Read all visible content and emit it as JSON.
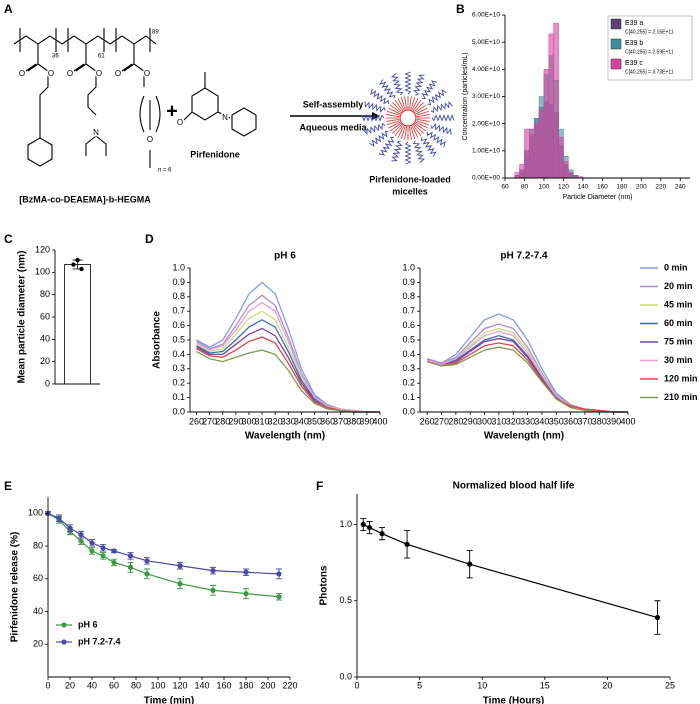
{
  "panel_labels": [
    "A",
    "B",
    "C",
    "D",
    "E",
    "F"
  ],
  "scheme": {
    "polymer_name": "[BzMA-co-DEAEMA]-b-HEGMA",
    "subscripts": [
      "36",
      "61",
      "89"
    ],
    "peg_subscript": "n = 6",
    "atoms": [
      "O",
      "O",
      "O",
      "O",
      "N",
      "O",
      "O",
      "O",
      "N",
      "O"
    ],
    "plus": "+",
    "drug_name": "Pirfenidone",
    "arrow_top": "Self-assembly",
    "arrow_bottom": "Aqueous media",
    "product_label": [
      "Pirfenidone-loaded",
      "micelles"
    ]
  },
  "chart_data": [
    {
      "type": "histogram",
      "xlabel": "Particle Diameter (nm)",
      "ylabel": "Concentration (particles/mL)",
      "bins": [
        65,
        70,
        75,
        80,
        85,
        90,
        95,
        100,
        105,
        110,
        115,
        120,
        125,
        130,
        135,
        140,
        145
      ],
      "series": [
        {
          "name": "E39 a",
          "concentration": "C[40,255] = 2.16E+11",
          "color": "#5b3f7c",
          "values": [
            0,
            1000000000.0,
            3000000000.0,
            10000000000.0,
            18000000000.0,
            22000000000.0,
            26000000000.0,
            28000000000.0,
            27000000000.0,
            24000000000.0,
            12000000000.0,
            5000000000.0,
            2000000000.0,
            1000000000.0,
            0,
            0
          ]
        },
        {
          "name": "E39 b",
          "concentration": "C[40,255] = 2.59E+11",
          "color": "#3f8d9c",
          "values": [
            0,
            0,
            2000000000.0,
            8000000000.0,
            15000000000.0,
            22000000000.0,
            30000000000.0,
            38000000000.0,
            45000000000.0,
            36000000000.0,
            18000000000.0,
            8000000000.0,
            3000000000.0,
            1000000000.0,
            0,
            0
          ]
        },
        {
          "name": "E39 c",
          "concentration": "C[40,255] = 3.73E+11",
          "color": "#d4439c",
          "values": [
            0,
            2000000000.0,
            5000000000.0,
            18000000000.0,
            16000000000.0,
            20000000000.0,
            25000000000.0,
            40000000000.0,
            53000000000.0,
            57000000000.0,
            15000000000.0,
            6000000000.0,
            2000000000.0,
            0,
            500000000.0,
            0
          ]
        }
      ],
      "xlim": [
        60,
        250
      ],
      "xticks": [
        60,
        80,
        100,
        120,
        140,
        160,
        180,
        200,
        220,
        240
      ],
      "ylim": [
        0,
        60000000000.0
      ],
      "yticks": [
        {
          "value": 0,
          "label": "0.00E+00"
        },
        {
          "value": 10000000000.0,
          "label": "1.00E+10"
        },
        {
          "value": 20000000000.0,
          "label": "2.00E+10"
        },
        {
          "value": 30000000000.0,
          "label": "3.00E+10"
        },
        {
          "value": 40000000000.0,
          "label": "4.00E+10"
        },
        {
          "value": 50000000000.0,
          "label": "5.00E+10"
        },
        {
          "value": 60000000000.0,
          "label": "6.00E+10"
        }
      ],
      "legend": "upper right"
    },
    {
      "type": "bar",
      "ylabel": "Mean particle diameter (nm)",
      "categories": [
        null
      ],
      "values": [
        107
      ],
      "errors": [
        4
      ],
      "points": [
        111,
        107,
        103
      ],
      "color": "#ffffff",
      "ylim": [
        0,
        120
      ],
      "yticks": [
        0,
        20,
        40,
        60,
        80,
        100,
        120
      ]
    },
    {
      "type": "line",
      "title": "pH 6",
      "xlabel": "Wavelength (nm)",
      "ylabel": "Absorbance",
      "x": [
        260,
        270,
        280,
        290,
        300,
        310,
        320,
        330,
        340,
        350,
        360,
        370,
        380,
        390,
        400
      ],
      "series": [
        {
          "color": "#7d9fe6",
          "values": [
            0.5,
            0.45,
            0.5,
            0.65,
            0.82,
            0.9,
            0.82,
            0.58,
            0.3,
            0.12,
            0.05,
            0.02,
            0.01,
            0.0,
            0.0
          ]
        },
        {
          "color": "#b38ad6",
          "values": [
            0.49,
            0.44,
            0.47,
            0.6,
            0.74,
            0.81,
            0.74,
            0.52,
            0.27,
            0.11,
            0.04,
            0.02,
            0.01,
            0.0,
            0.0
          ]
        },
        {
          "color": "#c8e07a",
          "values": [
            0.47,
            0.42,
            0.44,
            0.54,
            0.65,
            0.7,
            0.64,
            0.45,
            0.24,
            0.1,
            0.04,
            0.02,
            0.01,
            0.0,
            0.0
          ]
        },
        {
          "color": "#3b6fb5",
          "values": [
            0.46,
            0.41,
            0.42,
            0.5,
            0.59,
            0.64,
            0.59,
            0.42,
            0.22,
            0.09,
            0.04,
            0.01,
            0.01,
            0.0,
            0.0
          ]
        },
        {
          "color": "#7d3fa0",
          "values": [
            0.45,
            0.4,
            0.4,
            0.47,
            0.54,
            0.58,
            0.53,
            0.38,
            0.2,
            0.08,
            0.03,
            0.01,
            0.0,
            0.0,
            0.0
          ]
        },
        {
          "color": "#ec9fd2",
          "values": [
            0.48,
            0.43,
            0.46,
            0.57,
            0.7,
            0.76,
            0.7,
            0.49,
            0.26,
            0.1,
            0.04,
            0.02,
            0.01,
            0.0,
            0.0
          ]
        },
        {
          "color": "#e0434b",
          "values": [
            0.44,
            0.39,
            0.38,
            0.43,
            0.49,
            0.52,
            0.48,
            0.34,
            0.18,
            0.07,
            0.03,
            0.01,
            0.0,
            0.0,
            0.0
          ]
        },
        {
          "color": "#7d9a4f",
          "values": [
            0.42,
            0.37,
            0.35,
            0.38,
            0.41,
            0.43,
            0.4,
            0.29,
            0.15,
            0.06,
            0.02,
            0.01,
            0.0,
            0.0,
            0.0
          ]
        }
      ],
      "xlim": [
        255,
        400
      ],
      "xticks": [
        260,
        270,
        280,
        290,
        300,
        310,
        320,
        330,
        340,
        350,
        360,
        370,
        380,
        390,
        400
      ],
      "ylim": [
        0,
        1.0
      ],
      "yticks": [
        {
          "value": 0,
          "label": "0.0"
        },
        {
          "value": 0.1,
          "label": "0.1"
        },
        {
          "value": 0.2,
          "label": "0.2"
        },
        {
          "value": 0.3,
          "label": "0.3"
        },
        {
          "value": 0.4,
          "label": "0.4"
        },
        {
          "value": 0.5,
          "label": "0.5"
        },
        {
          "value": 0.6,
          "label": "0.6"
        },
        {
          "value": 0.7,
          "label": "0.7"
        },
        {
          "value": 0.8,
          "label": "0.8"
        },
        {
          "value": 0.9,
          "label": "0.9"
        },
        {
          "value": 1.0,
          "label": "1.0"
        }
      ]
    },
    {
      "type": "line",
      "title": "pH 7.2-7.4",
      "xlabel": "Wavelength (nm)",
      "x": [
        260,
        270,
        280,
        290,
        300,
        310,
        320,
        330,
        340,
        350,
        360,
        370,
        380,
        390,
        400
      ],
      "series": [
        {
          "name": "0 min",
          "color": "#7d9fe6",
          "values": [
            0.37,
            0.34,
            0.4,
            0.52,
            0.64,
            0.68,
            0.64,
            0.5,
            0.3,
            0.13,
            0.05,
            0.02,
            0.01,
            0.0,
            0.0
          ]
        },
        {
          "name": "20 min",
          "color": "#b38ad6",
          "values": [
            0.37,
            0.34,
            0.38,
            0.48,
            0.58,
            0.61,
            0.58,
            0.45,
            0.27,
            0.12,
            0.05,
            0.02,
            0.01,
            0.0,
            0.0
          ]
        },
        {
          "name": "45 min",
          "color": "#c8e07a",
          "values": [
            0.36,
            0.33,
            0.37,
            0.46,
            0.55,
            0.58,
            0.55,
            0.43,
            0.26,
            0.11,
            0.04,
            0.02,
            0.01,
            0.0,
            0.0
          ]
        },
        {
          "name": "60 min",
          "color": "#3b6fb5",
          "values": [
            0.36,
            0.33,
            0.36,
            0.43,
            0.5,
            0.53,
            0.5,
            0.39,
            0.24,
            0.1,
            0.04,
            0.02,
            0.01,
            0.0,
            0.0
          ]
        },
        {
          "name": "75 min",
          "color": "#7d3fa0",
          "values": [
            0.36,
            0.33,
            0.35,
            0.42,
            0.49,
            0.51,
            0.49,
            0.38,
            0.23,
            0.1,
            0.04,
            0.02,
            0.01,
            0.0,
            0.0
          ]
        },
        {
          "name": "30 min",
          "color": "#ec9fd2",
          "values": [
            0.36,
            0.33,
            0.37,
            0.45,
            0.53,
            0.56,
            0.53,
            0.41,
            0.25,
            0.11,
            0.04,
            0.02,
            0.01,
            0.0,
            0.0
          ]
        },
        {
          "name": "120 min",
          "color": "#e0434b",
          "values": [
            0.35,
            0.32,
            0.34,
            0.4,
            0.46,
            0.48,
            0.46,
            0.36,
            0.22,
            0.09,
            0.04,
            0.02,
            0.01,
            0.0,
            0.0
          ]
        },
        {
          "name": "210 min",
          "color": "#7d9a4f",
          "values": [
            0.35,
            0.32,
            0.33,
            0.38,
            0.43,
            0.45,
            0.43,
            0.34,
            0.21,
            0.09,
            0.03,
            0.01,
            0.0,
            0.0,
            0.0
          ]
        }
      ],
      "xlim": [
        255,
        400
      ],
      "xticks": [
        260,
        270,
        280,
        290,
        300,
        310,
        320,
        330,
        340,
        350,
        360,
        370,
        380,
        390,
        400
      ],
      "ylim": [
        0,
        1.0
      ],
      "yticks": [
        {
          "value": 0,
          "label": "0.0"
        },
        {
          "value": 0.1,
          "label": "0.1"
        },
        {
          "value": 0.2,
          "label": "0.2"
        },
        {
          "value": 0.3,
          "label": "0.3"
        },
        {
          "value": 0.4,
          "label": "0.4"
        },
        {
          "value": 0.5,
          "label": "0.5"
        },
        {
          "value": 0.6,
          "label": "0.6"
        },
        {
          "value": 0.7,
          "label": "0.7"
        },
        {
          "value": 0.8,
          "label": "0.8"
        },
        {
          "value": 0.9,
          "label": "0.9"
        },
        {
          "value": 1.0,
          "label": "1.0"
        }
      ],
      "legend": "right"
    },
    {
      "type": "line",
      "xlabel": "Time (min)",
      "ylabel": "Pirfenidone release (%)",
      "markers": true,
      "x": [
        0,
        10,
        20,
        30,
        40,
        50,
        60,
        75,
        90,
        120,
        150,
        180,
        210
      ],
      "series": [
        {
          "name": "pH 6",
          "color": "#3a9a3f",
          "values": [
            100,
            96,
            89,
            83,
            77,
            74,
            70,
            67,
            63,
            57,
            53,
            51,
            49
          ],
          "errors": [
            1,
            2,
            2,
            2,
            2,
            2,
            2,
            3,
            3,
            3,
            3,
            3,
            2
          ]
        },
        {
          "name": "pH 7.2-7.4",
          "color": "#4a4aa8",
          "values": [
            100,
            97,
            91,
            87,
            82,
            79,
            77,
            74,
            71,
            68,
            65,
            64,
            63
          ],
          "errors": [
            1,
            2,
            2,
            2,
            2,
            2,
            1,
            2,
            2,
            2,
            2,
            2,
            3
          ]
        }
      ],
      "xlim": [
        0,
        220
      ],
      "xticks": [
        0,
        20,
        40,
        60,
        80,
        100,
        120,
        140,
        160,
        180,
        200,
        220
      ],
      "ylim": [
        0,
        110
      ],
      "yticks": [
        20,
        40,
        60,
        80,
        100
      ],
      "legend": "lower left"
    },
    {
      "type": "line",
      "title": "Normalized blood half life",
      "xlabel": "Time (Hours)",
      "ylabel": "Photons",
      "markers": true,
      "x": [
        0.5,
        1,
        2,
        4,
        9,
        24
      ],
      "series": [
        {
          "color": "#000000",
          "values": [
            1.0,
            0.98,
            0.94,
            0.87,
            0.74,
            0.39
          ],
          "errors": [
            0.04,
            0.04,
            0.04,
            0.09,
            0.09,
            0.11
          ]
        }
      ],
      "xlim": [
        0,
        25
      ],
      "xticks": [
        0,
        5,
        10,
        15,
        20,
        25
      ],
      "ylim": [
        0,
        1.2
      ],
      "yticks": [
        {
          "value": 0,
          "label": "0.0"
        },
        {
          "value": 0.5,
          "label": "0.5"
        },
        {
          "value": 1.0,
          "label": "1.0"
        }
      ]
    }
  ]
}
